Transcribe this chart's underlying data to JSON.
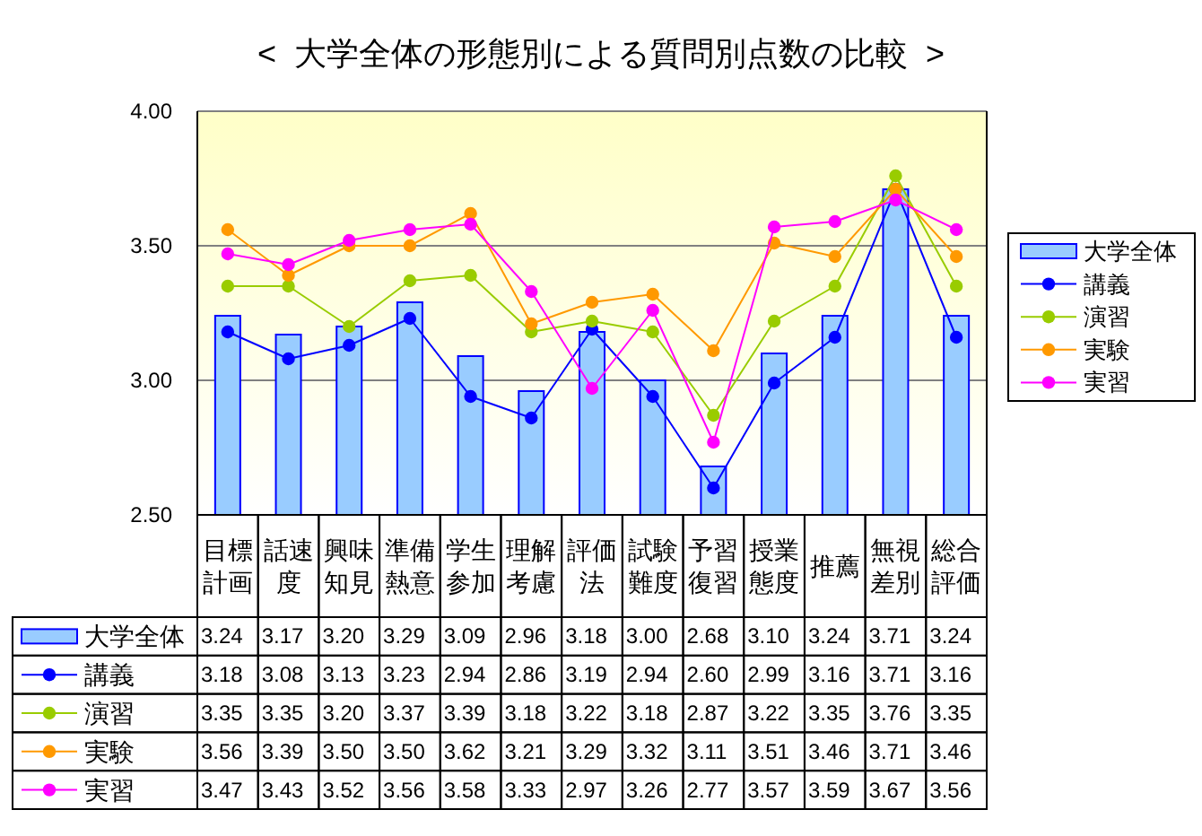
{
  "chart_data": {
    "type": "bar",
    "title": "<  大学全体の形態別による質問別点数の比較  >",
    "categories": [
      "目標計画",
      "話速度",
      "興味知見",
      "準備熱意",
      "学生参加",
      "理解考慮",
      "評価法",
      "試験難度",
      "予習復習",
      "授業態度",
      "推薦",
      "無視差別",
      "総合評価"
    ],
    "series": [
      {
        "name": "大学全体",
        "color": "#99ccff",
        "values": [
          3.24,
          3.17,
          3.2,
          3.29,
          3.09,
          2.96,
          3.18,
          3.0,
          2.68,
          3.1,
          3.24,
          3.71,
          3.24
        ],
        "value_labels": [
          "3.24",
          "3.17",
          "3.20",
          "3.29",
          "3.09",
          "2.96",
          "3.18",
          "3.00",
          "2.68",
          "3.10",
          "3.24",
          "3.71",
          "3.24"
        ]
      },
      {
        "name": "講義",
        "type": "line",
        "color": "#0000ff",
        "values": [
          3.18,
          3.08,
          3.13,
          3.23,
          2.94,
          2.86,
          3.19,
          2.94,
          2.6,
          2.99,
          3.16,
          3.71,
          3.16
        ],
        "value_labels": [
          "3.18",
          "3.08",
          "3.13",
          "3.23",
          "2.94",
          "2.86",
          "3.19",
          "2.94",
          "2.60",
          "2.99",
          "3.16",
          "3.71",
          "3.16"
        ]
      },
      {
        "name": "演習",
        "type": "line",
        "color": "#99cc00",
        "values": [
          3.35,
          3.35,
          3.2,
          3.37,
          3.39,
          3.18,
          3.22,
          3.18,
          2.87,
          3.22,
          3.35,
          3.76,
          3.35
        ],
        "value_labels": [
          "3.35",
          "3.35",
          "3.20",
          "3.37",
          "3.39",
          "3.18",
          "3.22",
          "3.18",
          "2.87",
          "3.22",
          "3.35",
          "3.76",
          "3.35"
        ]
      },
      {
        "name": "実験",
        "type": "line",
        "color": "#ff9900",
        "values": [
          3.56,
          3.39,
          3.5,
          3.5,
          3.62,
          3.21,
          3.29,
          3.32,
          3.11,
          3.51,
          3.46,
          3.71,
          3.46
        ],
        "value_labels": [
          "3.56",
          "3.39",
          "3.50",
          "3.50",
          "3.62",
          "3.21",
          "3.29",
          "3.32",
          "3.11",
          "3.51",
          "3.46",
          "3.71",
          "3.46"
        ]
      },
      {
        "name": "実習",
        "type": "line",
        "color": "#ff00ff",
        "values": [
          3.47,
          3.43,
          3.52,
          3.56,
          3.58,
          3.33,
          2.97,
          3.26,
          2.77,
          3.57,
          3.59,
          3.67,
          3.56
        ],
        "value_labels": [
          "3.47",
          "3.43",
          "3.52",
          "3.56",
          "3.58",
          "3.33",
          "2.97",
          "3.26",
          "2.77",
          "3.57",
          "3.59",
          "3.67",
          "3.56"
        ]
      }
    ],
    "ylim": [
      2.5,
      4
    ],
    "yticks": [
      {
        "value": 2.5,
        "label": "2.50"
      },
      {
        "value": 3,
        "label": "3.00"
      },
      {
        "value": 3.5,
        "label": "3.50"
      },
      {
        "value": 4,
        "label": "4.00"
      }
    ],
    "grid": "y",
    "legend": "right",
    "marker": "circle"
  }
}
